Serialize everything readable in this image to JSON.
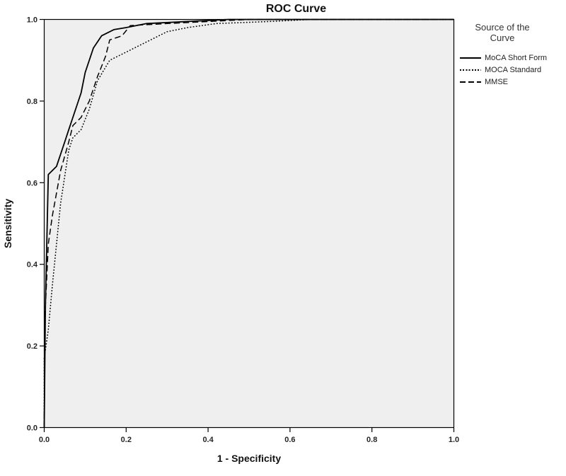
{
  "title": "ROC Curve",
  "axes": {
    "x_label": "1 - Specificity",
    "y_label": "Sensitivity",
    "x_ticks": [
      "0.0",
      "0.2",
      "0.4",
      "0.6",
      "0.8",
      "1.0"
    ],
    "y_ticks": [
      "0.0",
      "0.2",
      "0.4",
      "0.6",
      "0.8",
      "1.0"
    ]
  },
  "legend": {
    "title": "Source of the Curve",
    "items": [
      {
        "label": "MoCA Short Form",
        "style": "solid"
      },
      {
        "label": "MOCA Standard",
        "style": "dotted"
      },
      {
        "label": "MMSE",
        "style": "dashed"
      }
    ]
  },
  "chart_data": {
    "type": "line",
    "title": "ROC Curve",
    "xlabel": "1 - Specificity",
    "ylabel": "Sensitivity",
    "xlim": [
      0,
      1
    ],
    "ylim": [
      0,
      1
    ],
    "grid": false,
    "legend_position": "right",
    "plot_background": "#efefef",
    "line_color": "#000000",
    "series": [
      {
        "name": "MoCA Short Form",
        "style": "solid",
        "points": [
          [
            0,
            0
          ],
          [
            0.003,
            0.3
          ],
          [
            0.01,
            0.62
          ],
          [
            0.03,
            0.64
          ],
          [
            0.05,
            0.7
          ],
          [
            0.06,
            0.73
          ],
          [
            0.07,
            0.76
          ],
          [
            0.09,
            0.82
          ],
          [
            0.1,
            0.87
          ],
          [
            0.12,
            0.93
          ],
          [
            0.14,
            0.96
          ],
          [
            0.17,
            0.975
          ],
          [
            0.2,
            0.98
          ],
          [
            0.25,
            0.99
          ],
          [
            0.35,
            0.995
          ],
          [
            0.45,
            1.0
          ],
          [
            1,
            1
          ]
        ]
      },
      {
        "name": "MOCA Standard",
        "style": "dotted",
        "points": [
          [
            0,
            0
          ],
          [
            0,
            0.17
          ],
          [
            0.01,
            0.24
          ],
          [
            0.02,
            0.35
          ],
          [
            0.04,
            0.55
          ],
          [
            0.06,
            0.68
          ],
          [
            0.07,
            0.71
          ],
          [
            0.09,
            0.73
          ],
          [
            0.11,
            0.78
          ],
          [
            0.13,
            0.85
          ],
          [
            0.16,
            0.9
          ],
          [
            0.18,
            0.91
          ],
          [
            0.2,
            0.92
          ],
          [
            0.24,
            0.94
          ],
          [
            0.28,
            0.96
          ],
          [
            0.3,
            0.97
          ],
          [
            0.35,
            0.98
          ],
          [
            0.42,
            0.99
          ],
          [
            0.55,
            0.995
          ],
          [
            0.65,
            1.0
          ],
          [
            1,
            1
          ]
        ]
      },
      {
        "name": "MMSE",
        "style": "dashed",
        "points": [
          [
            0,
            0
          ],
          [
            0.002,
            0.28
          ],
          [
            0.01,
            0.45
          ],
          [
            0.02,
            0.52
          ],
          [
            0.04,
            0.63
          ],
          [
            0.06,
            0.7
          ],
          [
            0.07,
            0.74
          ],
          [
            0.09,
            0.76
          ],
          [
            0.11,
            0.8
          ],
          [
            0.13,
            0.86
          ],
          [
            0.15,
            0.91
          ],
          [
            0.16,
            0.95
          ],
          [
            0.19,
            0.96
          ],
          [
            0.21,
            0.985
          ],
          [
            0.3,
            0.99
          ],
          [
            0.4,
            0.995
          ],
          [
            0.5,
            1.0
          ],
          [
            1,
            1
          ]
        ]
      }
    ]
  }
}
